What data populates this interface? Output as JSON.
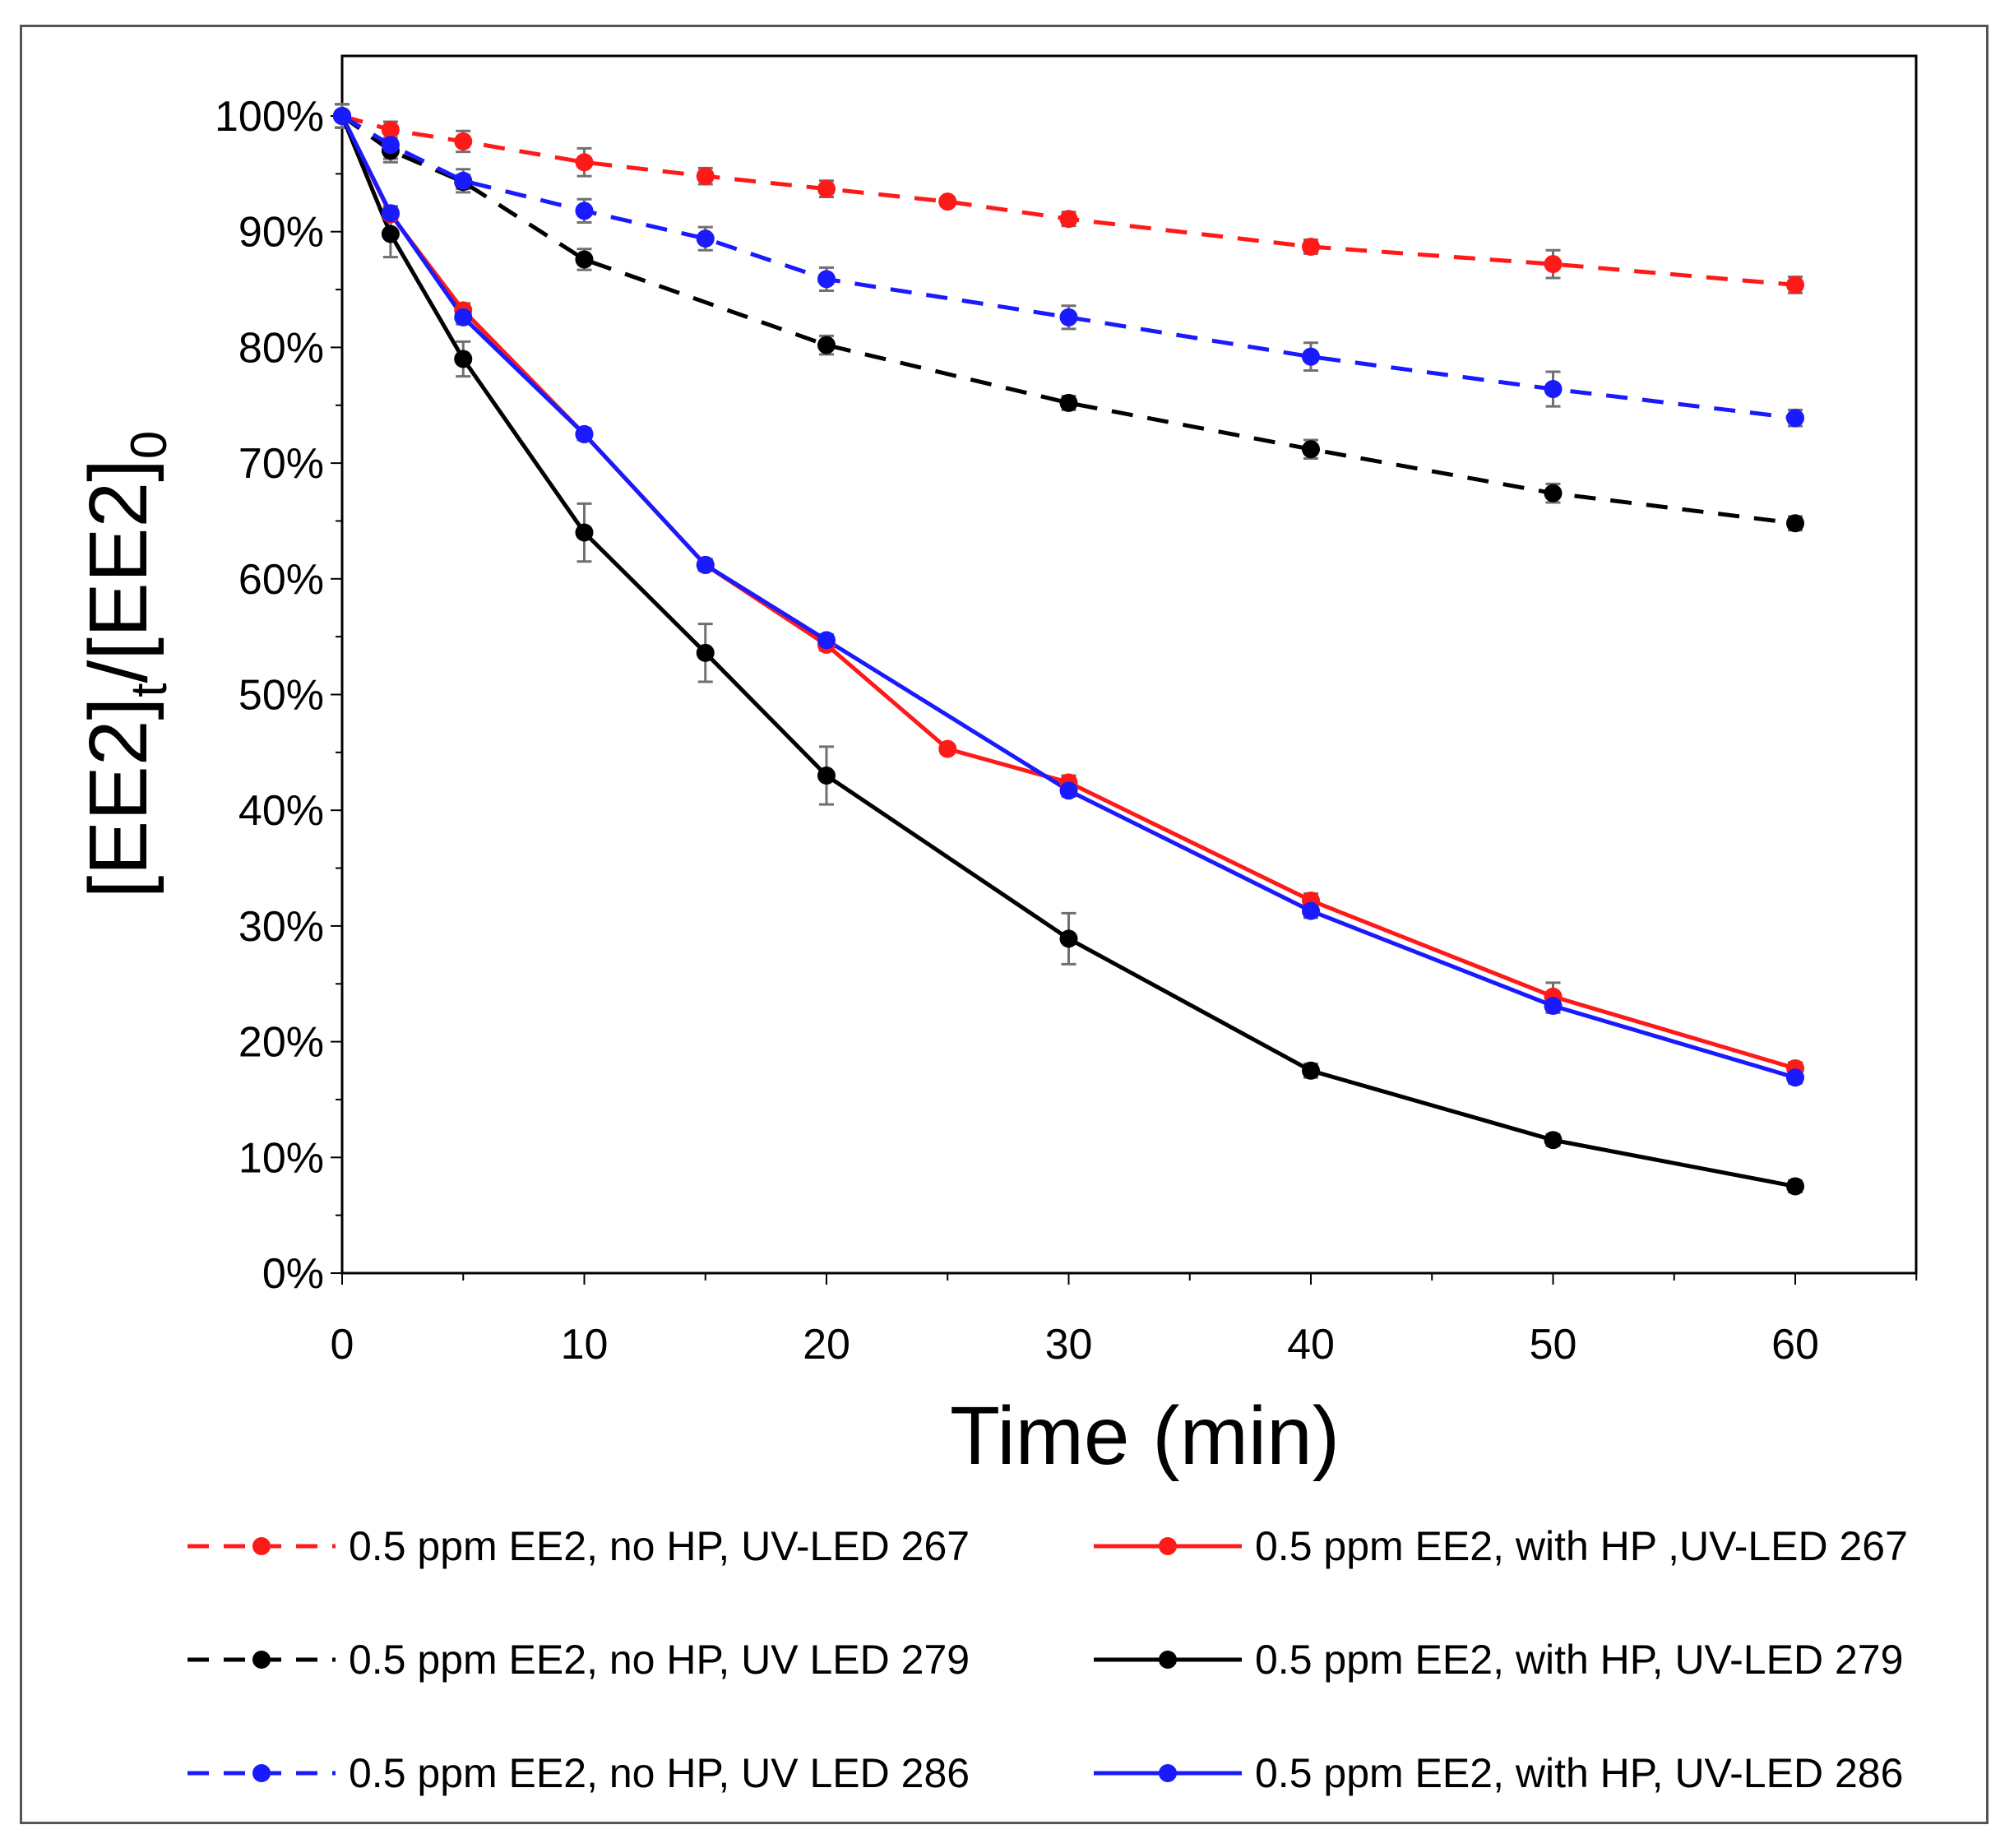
{
  "chart_data": {
    "type": "line",
    "xlabel": "Time (min)",
    "ylabel": {
      "main": "[EE2]",
      "sub_t": "t",
      "mid": "/[EE2]",
      "sub_0": "0"
    },
    "xlim": [
      0,
      65
    ],
    "ylim": [
      0,
      1.05
    ],
    "xticks": [
      "0",
      "10",
      "20",
      "30",
      "40",
      "50",
      "60"
    ],
    "xtick_values": [
      0,
      10,
      20,
      30,
      40,
      50,
      60
    ],
    "yticks": [
      "0%",
      "10%",
      "20%",
      "30%",
      "40%",
      "50%",
      "60%",
      "70%",
      "80%",
      "90%",
      "100%"
    ],
    "ytick_values": [
      0,
      0.1,
      0.2,
      0.3,
      0.4,
      0.5,
      0.6,
      0.7,
      0.8,
      0.9,
      1.0
    ],
    "grid": false,
    "legend_position": "bottom",
    "series": [
      {
        "name": "0.5 ppm EE2, no HP, UV-LED 267",
        "color": "#ff1a1a",
        "dashed": true,
        "x": [
          0,
          2,
          5,
          10,
          15,
          20,
          25,
          30,
          40,
          50,
          60
        ],
        "y": [
          1.0,
          0.988,
          0.978,
          0.96,
          0.948,
          0.937,
          0.926,
          0.911,
          0.887,
          0.872,
          0.854
        ],
        "err": [
          0.01,
          0.007,
          0.009,
          0.012,
          0.007,
          0.007,
          0.004,
          0.006,
          0.006,
          0.012,
          0.007
        ]
      },
      {
        "name": "0.5 ppm EE2, with HP ,UV-LED 267",
        "color": "#ff1a1a",
        "dashed": false,
        "x": [
          0,
          2,
          5,
          10,
          15,
          20,
          25,
          30,
          40,
          50,
          60
        ],
        "y": [
          1.0,
          0.915,
          0.832,
          0.725,
          0.612,
          0.543,
          0.453,
          0.424,
          0.322,
          0.239,
          0.177
        ],
        "err": [
          0.01,
          0.006,
          0.006,
          0.005,
          0.005,
          0.005,
          0.004,
          0.006,
          0.006,
          0.012,
          0.005
        ]
      },
      {
        "name": "0.5 ppm EE2, no HP, UV LED 279",
        "color": "#000000",
        "dashed": true,
        "x": [
          0,
          2,
          5,
          10,
          20,
          30,
          40,
          50,
          60
        ],
        "y": [
          1.0,
          0.97,
          0.943,
          0.876,
          0.802,
          0.752,
          0.712,
          0.674,
          0.648
        ],
        "err": [
          0.01,
          0.007,
          0.006,
          0.009,
          0.008,
          0.006,
          0.008,
          0.008,
          0.006
        ]
      },
      {
        "name": "0.5 ppm EE2, with HP, UV-LED 279",
        "color": "#000000",
        "dashed": false,
        "x": [
          0,
          2,
          5,
          10,
          15,
          20,
          30,
          40,
          50,
          60
        ],
        "y": [
          1.0,
          0.898,
          0.79,
          0.64,
          0.536,
          0.43,
          0.289,
          0.175,
          0.115,
          0.075
        ],
        "err": [
          0.01,
          0.02,
          0.015,
          0.025,
          0.025,
          0.025,
          0.022,
          0.006,
          0.005,
          0.005
        ]
      },
      {
        "name": "0.5 ppm EE2, no HP, UV LED 286",
        "color": "#1a1aff",
        "dashed": true,
        "x": [
          0,
          2,
          5,
          10,
          15,
          20,
          30,
          40,
          50,
          60
        ],
        "y": [
          1.0,
          0.975,
          0.944,
          0.918,
          0.894,
          0.859,
          0.826,
          0.792,
          0.764,
          0.739
        ],
        "err": [
          0.01,
          0.015,
          0.01,
          0.01,
          0.01,
          0.01,
          0.01,
          0.012,
          0.015,
          0.007
        ]
      },
      {
        "name": "0.5 ppm EE2, with HP, UV-LED 286",
        "color": "#1a1aff",
        "dashed": false,
        "x": [
          0,
          2,
          5,
          10,
          15,
          20,
          30,
          40,
          50,
          60
        ],
        "y": [
          1.0,
          0.916,
          0.826,
          0.725,
          0.612,
          0.547,
          0.417,
          0.313,
          0.231,
          0.169
        ],
        "err": [
          0.01,
          0.006,
          0.006,
          0.005,
          0.005,
          0.005,
          0.005,
          0.006,
          0.006,
          0.005
        ]
      }
    ],
    "legend_order": [
      0,
      1,
      2,
      3,
      4,
      5
    ]
  }
}
